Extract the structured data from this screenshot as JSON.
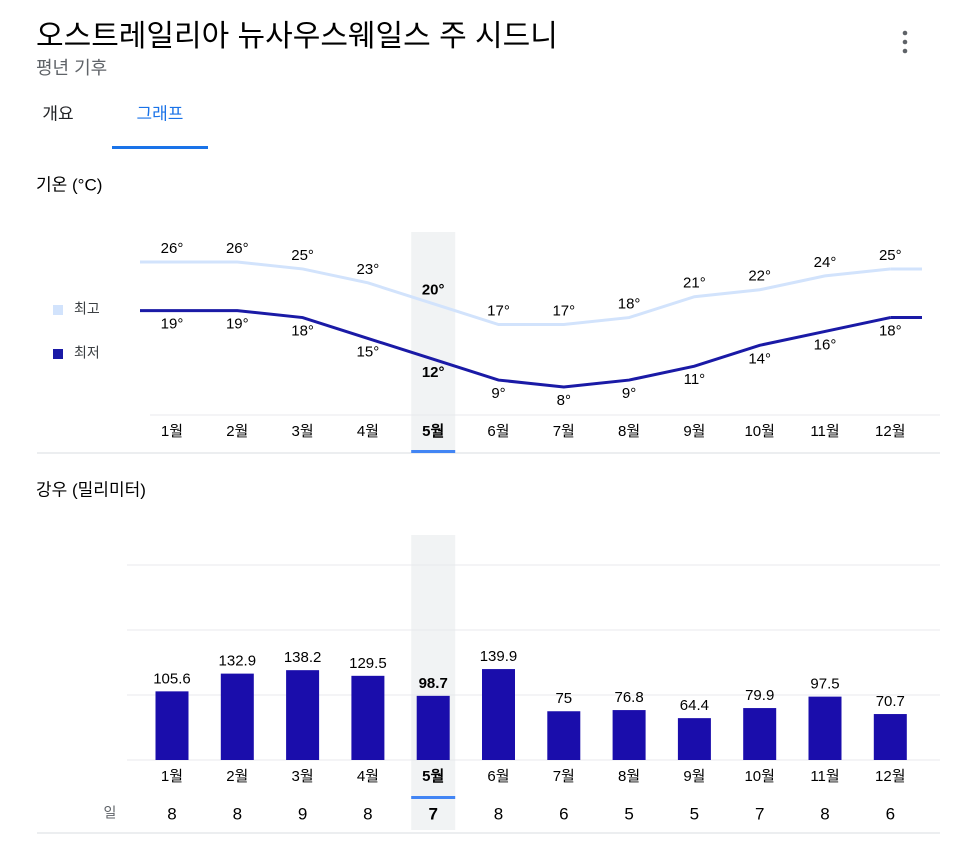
{
  "header": {
    "title": "오스트레일리아 뉴사우스웨일스 주 시드니",
    "subtitle": "평년 기후"
  },
  "tabs": {
    "items": [
      "개요",
      "그래프"
    ],
    "active": 1
  },
  "chart_data": [
    {
      "type": "line",
      "title": "기온 (°C)",
      "categories": [
        "1월",
        "2월",
        "3월",
        "4월",
        "5월",
        "6월",
        "7월",
        "8월",
        "9월",
        "10월",
        "11월",
        "12월"
      ],
      "selected": 4,
      "series": [
        {
          "name": "최고",
          "color": "#d2e3fc",
          "values": [
            26,
            26,
            25,
            23,
            20,
            17,
            17,
            18,
            21,
            22,
            24,
            25
          ],
          "value_labels": [
            "26°",
            "26°",
            "25°",
            "23°",
            "20°",
            "17°",
            "17°",
            "18°",
            "21°",
            "22°",
            "24°",
            "25°"
          ]
        },
        {
          "name": "최저",
          "color": "#1a1aa6",
          "values": [
            19,
            19,
            18,
            15,
            12,
            9,
            8,
            9,
            11,
            14,
            16,
            18
          ],
          "value_labels": [
            "19°",
            "19°",
            "18°",
            "15°",
            "12°",
            "9°",
            "8°",
            "9°",
            "11°",
            "14°",
            "16°",
            "18°"
          ]
        }
      ]
    },
    {
      "type": "bar",
      "title": "강우 (밀리미터)",
      "categories": [
        "1월",
        "2월",
        "3월",
        "4월",
        "5월",
        "6월",
        "7월",
        "8월",
        "9월",
        "10월",
        "11월",
        "12월"
      ],
      "selected": 4,
      "values": [
        105.6,
        132.9,
        138.2,
        129.5,
        98.7,
        139.9,
        75,
        76.8,
        64.4,
        79.9,
        97.5,
        70.7
      ],
      "color": "#1a0dab",
      "ylim": [
        0,
        300
      ],
      "yticks": [
        0,
        100,
        200,
        300
      ],
      "grid": true,
      "days_label": "일",
      "days": [
        8,
        8,
        9,
        8,
        7,
        8,
        6,
        5,
        5,
        7,
        8,
        6
      ]
    }
  ]
}
